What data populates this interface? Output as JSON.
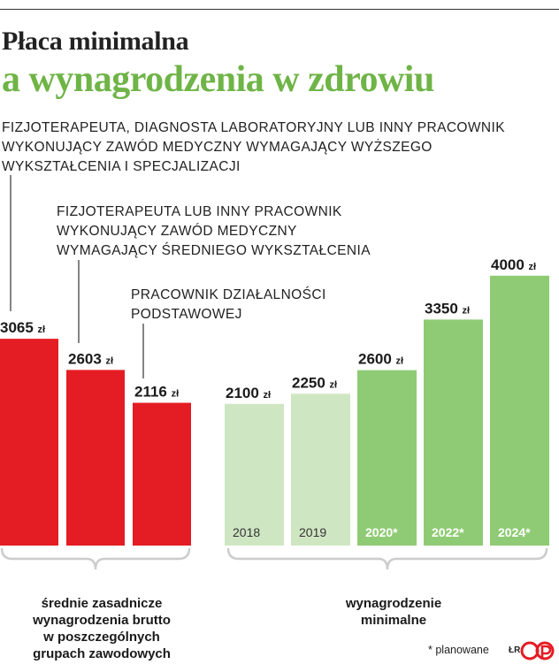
{
  "header": {
    "title_line1": "Płaca minimalna",
    "title_line2": "a wynagrodzenia w zdrowiu"
  },
  "annotations": [
    "FIZJOTERAPEUTA, DIAGNOSTA LABORATORYJNY LUB INNY PRACOWNIK\nWYKONUJĄCY ZAWÓD MEDYCZNY WYMAGAJĄCY WYŻSZEGO\nWYKSZTAŁCENIA I SPECJALIZACJI",
    "FIZJOTERAPEUTA LUB INNY PRACOWNIK\nWYKONUJĄCY ZAWÓD MEDYCZNY\nWYMAGAJĄCY ŚREDNIEGO WYKSZTAŁCENIA",
    "PRACOWNIK DZIAŁALNOŚCI\nPODSTAWOWEJ"
  ],
  "group_labels": {
    "left": "średnie zasadnicze\nwynagrodzenia brutto\nw poszczególnych\ngrupach zawodowych",
    "right": "wynagrodzenie\nminimalne"
  },
  "footnote": "* planowane",
  "credit": "ŁR",
  "chart_data": [
    {
      "type": "bar",
      "categories": [
        "",
        "",
        ""
      ],
      "values": [
        3065,
        2603,
        2116
      ],
      "value_labels": [
        "3065",
        "2603",
        "2116"
      ],
      "unit": "zł",
      "colors": {
        "bar": "#e41c23"
      }
    },
    {
      "type": "bar",
      "categories": [
        "2018",
        "2019",
        "2020*",
        "2022*",
        "2024*"
      ],
      "values": [
        2100,
        2250,
        2600,
        3350,
        4000
      ],
      "value_labels": [
        "2100",
        "2250",
        "2600",
        "3350",
        "4000"
      ],
      "unit": "zł",
      "planned_flags": [
        false,
        false,
        true,
        true,
        true
      ],
      "colors": {
        "actual": "#cfe6c2",
        "planned": "#8fcb74"
      }
    }
  ],
  "colors": {
    "title_accent": "#6fb447",
    "bracket": "#cccccc",
    "text": "#1a1a1a",
    "logo": "#e41c23"
  },
  "icons": {
    "logo": "pap-logo-icon"
  }
}
